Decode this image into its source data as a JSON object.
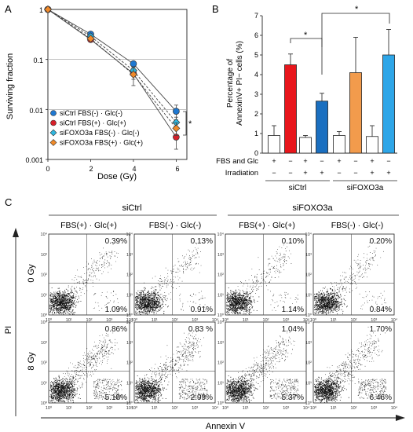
{
  "panel_labels": {
    "a": "A",
    "b": "B",
    "c": "C"
  },
  "panelA": {
    "ylabel": "Surviving fraction",
    "xlabel": "Dose (Gy)",
    "yticks": [
      "1",
      "0.1",
      "0.01",
      "0.001"
    ],
    "xticks": [
      "0",
      "2",
      "4",
      "6"
    ],
    "significance": "*"
  },
  "panelB": {
    "ylabel_line1": "Percentage of",
    "ylabel_line2": "AnnexinV+ PI− cells (%)",
    "yticks": [
      "0",
      "1",
      "2",
      "3",
      "4",
      "5",
      "6",
      "7"
    ],
    "row1_label": "FBS and Glc",
    "row2_label": "Irradiation",
    "row1_signs": [
      "+",
      "−",
      "+",
      "−",
      "+",
      "−",
      "+",
      "−"
    ],
    "row2_signs": [
      "−",
      "−",
      "+",
      "+",
      "−",
      "−",
      "+",
      "+"
    ],
    "group1": "siCtrl",
    "group2": "siFOXO3a",
    "sig1": "*",
    "sig2": "*"
  },
  "panelC": {
    "group1": "siCtrl",
    "group2": "siFOXO3a",
    "col_labels": [
      "FBS(+) · Glc(+)",
      "FBS(-) · Glc(-)",
      "FBS(+) · Glc(+)",
      "FBS(-) · Glc(-)"
    ],
    "row_labels": [
      "0 Gy",
      "8 Gy"
    ],
    "ylabel": "PI",
    "xlabel": "Annexin V",
    "tick_labels": {
      "t0": "10⁰",
      "t1": "10¹",
      "t2": "10²",
      "t3": "10³",
      "t4": "10⁴"
    },
    "plots": [
      {
        "upper_right": "0.39%",
        "lower_right": "1.09%"
      },
      {
        "upper_right": "0.13%",
        "lower_right": "0.91%"
      },
      {
        "upper_right": "0.10%",
        "lower_right": "1.14%"
      },
      {
        "upper_right": "0.20%",
        "lower_right": "0.84%"
      },
      {
        "upper_right": "0.86%",
        "lower_right": "5.18%"
      },
      {
        "upper_right": "0.83 %",
        "lower_right": "2.99%"
      },
      {
        "upper_right": "1.04%",
        "lower_right": "5.37%"
      },
      {
        "upper_right": "1.70%",
        "lower_right": "6.46%"
      }
    ]
  },
  "chart_data": [
    {
      "type": "line",
      "xlabel": "Dose (Gy)",
      "ylabel": "Surviving fraction",
      "yscale": "log",
      "ylim": [
        0.001,
        1
      ],
      "xlim": [
        0,
        6.5
      ],
      "grid": "horizontal at 0.1 and 0.01",
      "legend_position": "bottom-left",
      "x": [
        0,
        2,
        4,
        6
      ],
      "series": [
        {
          "name": "siCtrl FBS(-) · Glc(-)",
          "color": "#1f78d1",
          "marker": "circle",
          "line": "solid",
          "values": [
            1,
            0.32,
            0.082,
            0.0092
          ],
          "err": [
            0,
            0.02,
            0.01,
            0.003
          ]
        },
        {
          "name": "siCtrl FBS(+) · Glc(+)",
          "color": "#d6202a",
          "marker": "circle",
          "line": "solid",
          "values": [
            1,
            0.25,
            0.052,
            0.0028
          ],
          "err": [
            0,
            0.02,
            0.012,
            0.0012
          ]
        },
        {
          "name": "siFOXO3a FBS(-) · Glc(-)",
          "color": "#2fb7e0",
          "marker": "diamond",
          "line": "dashed",
          "values": [
            1,
            0.29,
            0.06,
            0.0055
          ],
          "err": [
            0,
            0.02,
            0.01,
            0.0015
          ]
        },
        {
          "name": "siFOXO3a FBS(+) · Glc(+)",
          "color": "#f08a2a",
          "marker": "diamond",
          "line": "dashed",
          "values": [
            1,
            0.26,
            0.05,
            0.0042
          ],
          "err": [
            0,
            0.02,
            0.02,
            0.0012
          ]
        }
      ]
    },
    {
      "type": "bar",
      "ylabel": "Percentage of AnnexinV+ PI− cells (%)",
      "ylim": [
        0,
        7
      ],
      "categories": [
        "siCtrl FBS+Glc+ 0Gy",
        "siCtrl FBS-Glc- 0Gy",
        "siCtrl FBS+Glc+ IR",
        "siCtrl FBS-Glc- IR",
        "siFOXO3a FBS+Glc+ 0Gy",
        "siFOXO3a FBS-Glc- 0Gy",
        "siFOXO3a FBS+Glc+ IR",
        "siFOXO3a FBS-Glc- IR"
      ],
      "values": [
        0.9,
        4.5,
        0.8,
        2.65,
        0.9,
        4.1,
        0.85,
        5.0
      ],
      "errors": [
        0.5,
        0.55,
        0.1,
        0.4,
        0.2,
        1.8,
        0.55,
        1.3
      ],
      "colors": [
        "#ffffff",
        "#e8161c",
        "#ffffff",
        "#1a6fc0",
        "#ffffff",
        "#f29b4c",
        "#ffffff",
        "#2ea6e8"
      ]
    }
  ]
}
